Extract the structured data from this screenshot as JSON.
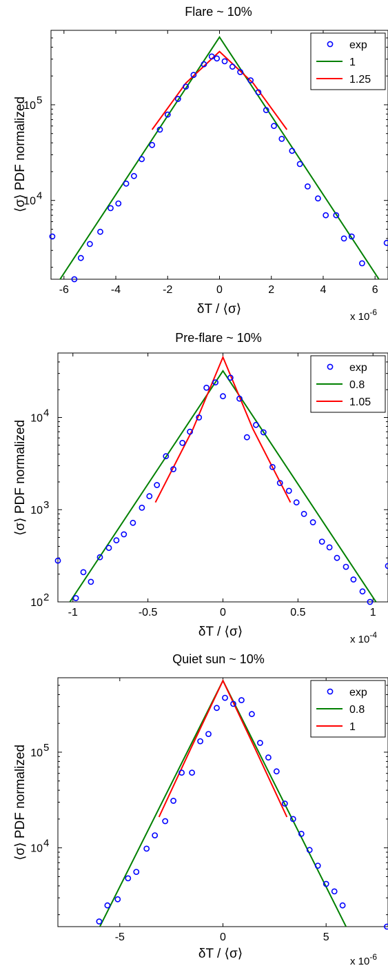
{
  "chart_data": [
    {
      "type": "scatter",
      "title": "Flare ~ 10%",
      "xlabel": "δT / ⟨σ⟩",
      "ylabel": "⟨σ⟩ PDF normalized",
      "x_exponent": "x 10",
      "x_exponent_power": "-6",
      "xscale": "linear",
      "yscale": "log",
      "xlim": [
        -6.5,
        6.5
      ],
      "ylim": [
        1500,
        600000
      ],
      "xticks": [
        -6,
        -4,
        -2,
        0,
        2,
        4,
        6
      ],
      "xtick_labels": [
        "-6",
        "-4",
        "-2",
        "0",
        "2",
        "4",
        "6"
      ],
      "yticks": [
        10000,
        100000
      ],
      "ytick_base": "10",
      "ytick_powers": [
        "4",
        "5"
      ],
      "legend_position": "top-right",
      "series": [
        {
          "name": "exp",
          "kind": "markers",
          "color": "#0000ff",
          "x": [
            -6.45,
            -5.6,
            -5.35,
            -5.0,
            -4.6,
            -4.2,
            -3.9,
            -3.6,
            -3.3,
            -3.0,
            -2.6,
            -2.3,
            -2.0,
            -1.6,
            -1.3,
            -1.0,
            -0.6,
            -0.3,
            -0.1,
            0.2,
            0.5,
            0.8,
            1.2,
            1.5,
            1.8,
            2.1,
            2.4,
            2.8,
            3.1,
            3.4,
            3.8,
            4.1,
            4.5,
            4.8,
            5.1,
            5.5,
            6.45
          ],
          "y": [
            4200,
            1500,
            2500,
            3500,
            4700,
            8300,
            9300,
            15000,
            18000,
            27000,
            38000,
            55000,
            79000,
            115000,
            155000,
            205000,
            265000,
            320000,
            305000,
            285000,
            250000,
            220000,
            180000,
            135000,
            88000,
            60000,
            44000,
            33000,
            24000,
            14000,
            10500,
            7000,
            7000,
            4000,
            4200,
            2200,
            3600
          ]
        },
        {
          "name": "1",
          "kind": "line",
          "color": "#008000",
          "x": [
            -6.3,
            0,
            6.3
          ],
          "y": [
            1300,
            510000,
            1300
          ]
        },
        {
          "name": "1.25",
          "kind": "line",
          "color": "#ff0000",
          "x": [
            -2.6,
            -1.3,
            0,
            1.3,
            2.6
          ],
          "y": [
            55000,
            168000,
            360000,
            168000,
            55000
          ]
        }
      ]
    },
    {
      "type": "scatter",
      "title": "Pre-flare ~ 10%",
      "xlabel": "δT / ⟨σ⟩",
      "ylabel": "⟨σ⟩ PDF normalized",
      "x_exponent": "x 10",
      "x_exponent_power": "-4",
      "xscale": "linear",
      "yscale": "log",
      "xlim": [
        -1.1,
        1.1
      ],
      "ylim": [
        100,
        50000
      ],
      "xticks": [
        -1,
        -0.5,
        0,
        0.5,
        1
      ],
      "xtick_labels": [
        "-1",
        "-0.5",
        "0",
        "0.5",
        "1"
      ],
      "yticks": [
        100,
        1000,
        10000
      ],
      "ytick_base": "10",
      "ytick_powers": [
        "2",
        "3",
        "4"
      ],
      "legend_position": "top-right",
      "series": [
        {
          "name": "exp",
          "kind": "markers",
          "color": "#0000ff",
          "x": [
            -1.1,
            -0.98,
            -0.93,
            -0.88,
            -0.82,
            -0.76,
            -0.71,
            -0.66,
            -0.6,
            -0.54,
            -0.49,
            -0.44,
            -0.38,
            -0.33,
            -0.27,
            -0.22,
            -0.16,
            -0.11,
            -0.05,
            0,
            0.05,
            0.11,
            0.16,
            0.22,
            0.27,
            0.33,
            0.38,
            0.44,
            0.49,
            0.54,
            0.6,
            0.66,
            0.71,
            0.76,
            0.82,
            0.87,
            0.93,
            0.98,
            1.1
          ],
          "y": [
            280,
            110,
            210,
            165,
            305,
            385,
            465,
            540,
            720,
            1050,
            1400,
            1850,
            3800,
            2750,
            5300,
            7000,
            10000,
            21000,
            24000,
            17000,
            27000,
            16000,
            6100,
            8300,
            6900,
            2900,
            1950,
            1600,
            1200,
            900,
            730,
            450,
            390,
            300,
            240,
            175,
            130,
            100,
            245
          ]
        },
        {
          "name": "0.8",
          "kind": "line",
          "color": "#008000",
          "x": [
            -1.02,
            0,
            1.02
          ],
          "y": [
            100,
            32000,
            100
          ]
        },
        {
          "name": "1.05",
          "kind": "line",
          "color": "#ff0000",
          "x": [
            -0.45,
            -0.2,
            0,
            0.2,
            0.45
          ],
          "y": [
            1200,
            7500,
            45000,
            7500,
            1200
          ]
        }
      ]
    },
    {
      "type": "scatter",
      "title": "Quiet sun ~ 10%",
      "xlabel": "δT / ⟨σ⟩",
      "ylabel": "⟨σ⟩ PDF normalized",
      "x_exponent": "x 10",
      "x_exponent_power": "-6",
      "xscale": "linear",
      "yscale": "log",
      "xlim": [
        -8,
        8
      ],
      "ylim": [
        1500,
        600000
      ],
      "xticks": [
        -5,
        0,
        5
      ],
      "xtick_labels": [
        "-5",
        "0",
        "5"
      ],
      "yticks": [
        10000,
        100000
      ],
      "ytick_base": "10",
      "ytick_powers": [
        "4",
        "5"
      ],
      "legend_position": "top-right",
      "series": [
        {
          "name": "exp",
          "kind": "markers",
          "color": "#0000ff",
          "x": [
            -6.0,
            -5.6,
            -5.1,
            -4.6,
            -4.2,
            -3.7,
            -3.3,
            -2.8,
            -2.4,
            -2.0,
            -1.5,
            -1.1,
            -0.7,
            -0.3,
            0.1,
            0.5,
            0.9,
            1.4,
            1.8,
            2.2,
            2.6,
            3.0,
            3.4,
            3.8,
            4.2,
            4.6,
            5.0,
            5.4,
            5.8,
            7.95
          ],
          "y": [
            1700,
            2500,
            2900,
            4800,
            5600,
            9800,
            13500,
            19000,
            31000,
            61000,
            61000,
            130000,
            155000,
            290000,
            370000,
            320000,
            350000,
            250000,
            125000,
            88000,
            63000,
            29000,
            20000,
            14000,
            9500,
            6500,
            4200,
            3500,
            2500,
            1500
          ]
        },
        {
          "name": "0.8",
          "kind": "line",
          "color": "#008000",
          "x": [
            -6.6,
            0,
            6.6
          ],
          "y": [
            800,
            560000,
            800
          ]
        },
        {
          "name": "1",
          "kind": "line",
          "color": "#ff0000",
          "x": [
            -3.1,
            -1.55,
            0,
            1.55,
            3.1
          ],
          "y": [
            21000,
            110000,
            560000,
            110000,
            21000
          ]
        }
      ]
    }
  ]
}
